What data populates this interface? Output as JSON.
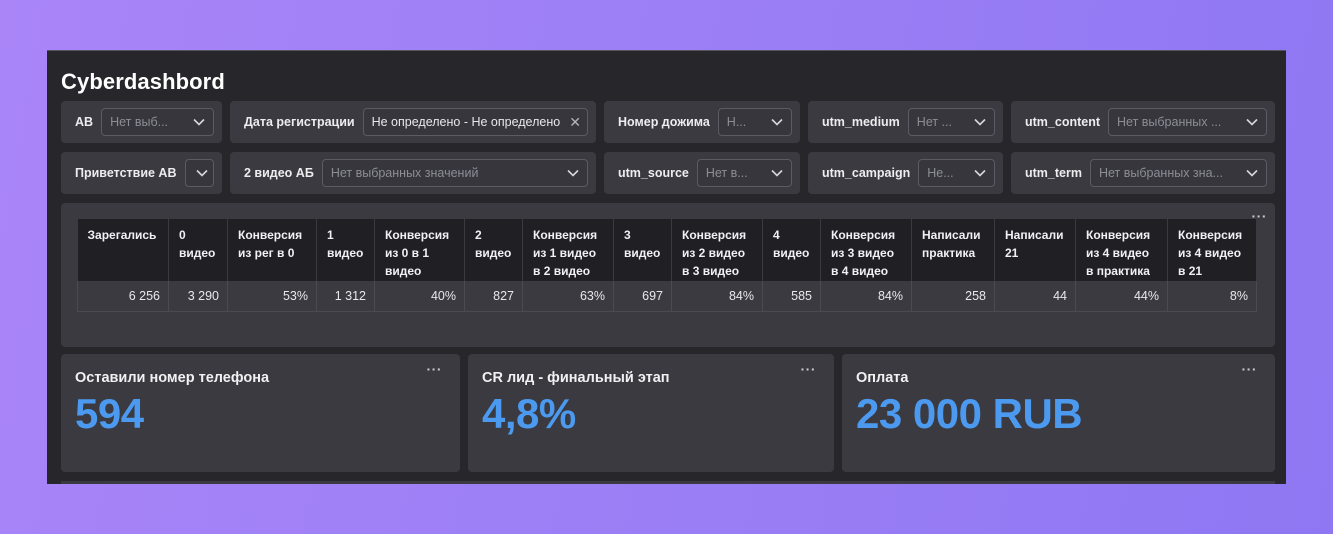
{
  "dashboard": {
    "title": "Cyberdashbord"
  },
  "filters": [
    {
      "label": "АВ",
      "value": "Нет выб..."
    },
    {
      "label": "Дата регистрации",
      "value": "Не определено - Не определено"
    },
    {
      "label": "Номер дожима",
      "value": "Н..."
    },
    {
      "label": "utm_medium",
      "value": "Нет ..."
    },
    {
      "label": "utm_content",
      "value": "Нет выбранных ..."
    },
    {
      "label": "Приветствие АВ",
      "value": ""
    },
    {
      "label": "2 видео АБ",
      "value": "Нет выбранных значений"
    },
    {
      "label": "utm_source",
      "value": "Нет в..."
    },
    {
      "label": "utm_campaign",
      "value": "Не..."
    },
    {
      "label": "utm_term",
      "value": "Нет выбранных зна..."
    }
  ],
  "table": {
    "headers": [
      "Зарегались",
      "0 видео",
      "Конверсия из рег в 0",
      "1 видео",
      "Конверсия из 0 в 1 видео",
      "2 видео",
      "Конверсия из 1 видео в 2 видео",
      "3 видео",
      "Конверсия из 2 видео в 3 видео",
      "4 видео",
      "Конверсия из 3 видео в 4 видео",
      "Написали практика",
      "Написали 21",
      "Конверсия из 4 видео в практика",
      "Конверсия из 4 видео в 21"
    ],
    "row": [
      "6 256",
      "3 290",
      "53%",
      "1 312",
      "40%",
      "827",
      "63%",
      "697",
      "84%",
      "585",
      "84%",
      "258",
      "44",
      "44%",
      "8%"
    ]
  },
  "kpis": [
    {
      "label": "Оставили номер телефона",
      "value": "594"
    },
    {
      "label": "CR лид - финальный этап",
      "value": "4,8%"
    },
    {
      "label": "Оплата",
      "value": "23 000 RUB"
    }
  ],
  "menu_glyph": "···",
  "colors": {
    "accent": "#4c9af0",
    "panel": "#3a3a40",
    "background": "#26262b"
  }
}
